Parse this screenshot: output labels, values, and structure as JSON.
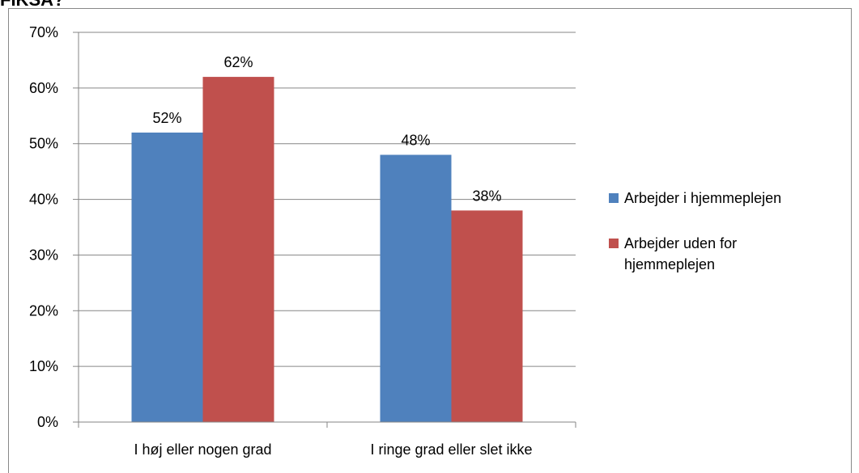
{
  "heading": "FIKSA?",
  "chart_data": {
    "type": "bar",
    "categories": [
      "I høj eller nogen grad",
      "I ringe grad eller slet ikke"
    ],
    "series": [
      {
        "name": "Arbejder i hjemmeplejen",
        "color": "#4f81bd",
        "values": [
          52,
          48
        ],
        "value_labels": [
          "52%",
          "48%"
        ]
      },
      {
        "name": "Arbejder uden for hjemmeplejen",
        "color": "#c0504d",
        "values": [
          62,
          38
        ],
        "value_labels": [
          "62%",
          "38%"
        ]
      }
    ],
    "ylim": [
      0,
      70
    ],
    "yticks": [
      {
        "value": 0,
        "label": "0%"
      },
      {
        "value": 10,
        "label": "10%"
      },
      {
        "value": 20,
        "label": "20%"
      },
      {
        "value": 30,
        "label": "30%"
      },
      {
        "value": 40,
        "label": "40%"
      },
      {
        "value": 50,
        "label": "50%"
      },
      {
        "value": 60,
        "label": "60%"
      },
      {
        "value": 70,
        "label": "70%"
      }
    ],
    "grid": true,
    "legend": "right"
  }
}
